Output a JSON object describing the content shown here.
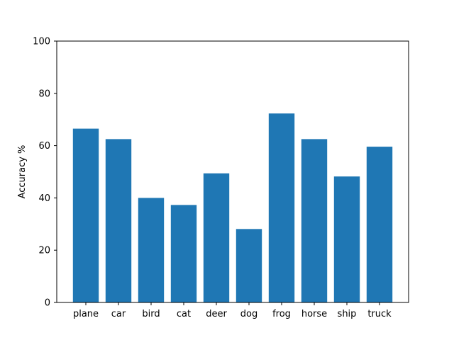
{
  "chart_data": {
    "type": "bar",
    "title": "",
    "xlabel": "",
    "ylabel": "Accuracy %",
    "categories": [
      "plane",
      "car",
      "bird",
      "cat",
      "deer",
      "dog",
      "frog",
      "horse",
      "ship",
      "truck"
    ],
    "values": [
      66.5,
      62.5,
      40.0,
      37.3,
      49.4,
      28.1,
      72.3,
      62.5,
      48.2,
      59.6
    ],
    "ylim": [
      0,
      100
    ],
    "yticks": [
      "0",
      "20",
      "40",
      "60",
      "80",
      "100"
    ],
    "grid": false,
    "legend": "none",
    "bar_color": "#1f77b4"
  }
}
